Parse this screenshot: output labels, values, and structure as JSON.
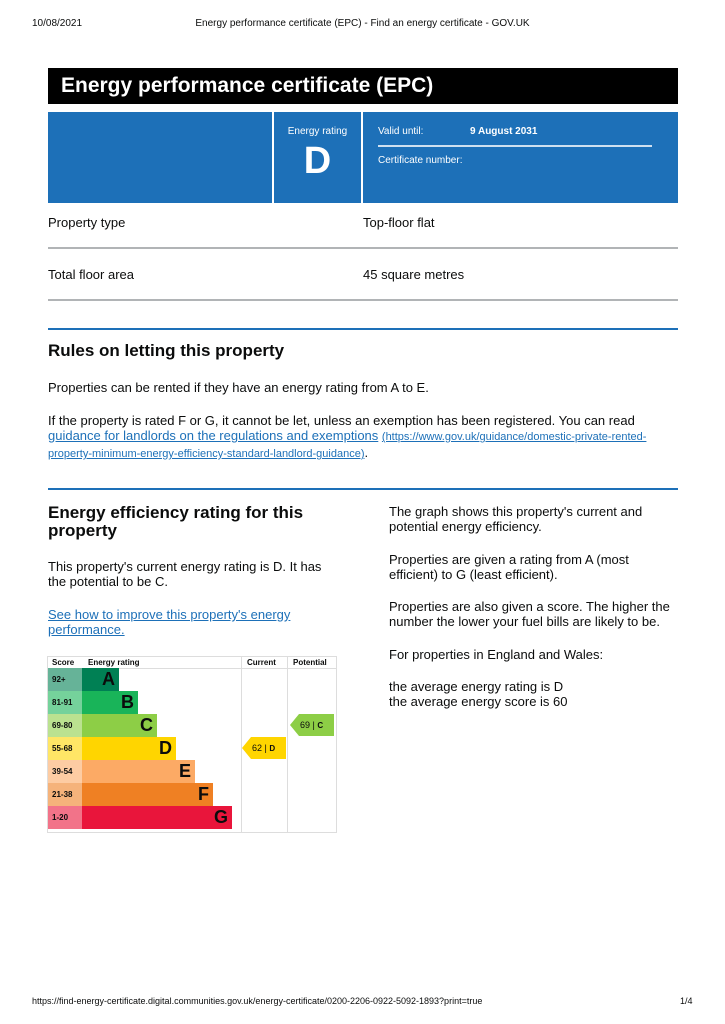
{
  "browser": {
    "date": "10/08/2021",
    "title": "Energy performance certificate (EPC) - Find an energy certificate - GOV.UK",
    "url": "https://find-energy-certificate.digital.communities.gov.uk/energy-certificate/0200-2206-0922-5092-1893?print=true",
    "page": "1/4"
  },
  "title": "Energy performance certificate (EPC)",
  "summary": {
    "rating_label": "Energy rating",
    "rating": "D",
    "valid_label": "Valid until:",
    "valid_date": "9 August 2031",
    "cert_label": "Certificate number:"
  },
  "properties": [
    {
      "label": "Property type",
      "value": "Top-floor flat"
    },
    {
      "label": "Total floor area",
      "value": "45 square metres"
    }
  ],
  "letting": {
    "heading": "Rules on letting this property",
    "p1": "Properties can be rented if they have an energy rating from A to E.",
    "p2": "If the property is rated F or G, it cannot be let, unless an exemption has been registered. You can read",
    "link": "guidance for landlords on the regulations and exemptions",
    "link_url": "(https://www.gov.uk/guidance/domestic-private-rented-property-minimum-energy-efficiency-standard-landlord-guidance)",
    "end": "."
  },
  "efficiency": {
    "heading": "Energy efficiency rating for this property",
    "p1": "This property's current energy rating is D. It has the potential to be C.",
    "link": "See how to improve this property's energy performance.",
    "r1": "The graph shows this property's current and potential energy efficiency.",
    "r2": "Properties are given a rating from A (most efficient) to G (least efficient).",
    "r3": "Properties are also given a score. The higher the number the lower your fuel bills are likely to be.",
    "r4": "For properties in England and Wales:",
    "r5": "the average energy rating is D",
    "r6": "the average energy score is 60"
  },
  "chart_data": {
    "type": "table",
    "headers": [
      "Score",
      "Energy rating",
      "Current",
      "Potential"
    ],
    "bands": [
      {
        "score": "92+",
        "letter": "A",
        "color": "#008054",
        "score_bg": "#66b398"
      },
      {
        "score": "81-91",
        "letter": "B",
        "color": "#19b459",
        "score_bg": "#75d29b"
      },
      {
        "score": "69-80",
        "letter": "C",
        "color": "#8dce46",
        "score_bg": "#bbe290"
      },
      {
        "score": "55-68",
        "letter": "D",
        "color": "#ffd500",
        "score_bg": "#ffe666"
      },
      {
        "score": "39-54",
        "letter": "E",
        "color": "#fcaa65",
        "score_bg": "#fdcca3"
      },
      {
        "score": "21-38",
        "letter": "F",
        "color": "#ef8023",
        "score_bg": "#f5b37b"
      },
      {
        "score": "1-20",
        "letter": "G",
        "color": "#e9153b",
        "score_bg": "#f27389"
      }
    ],
    "current": {
      "score": "62",
      "letter": "D",
      "color": "#ffd500"
    },
    "potential": {
      "score": "69",
      "letter": "C",
      "color": "#8dce46"
    }
  }
}
